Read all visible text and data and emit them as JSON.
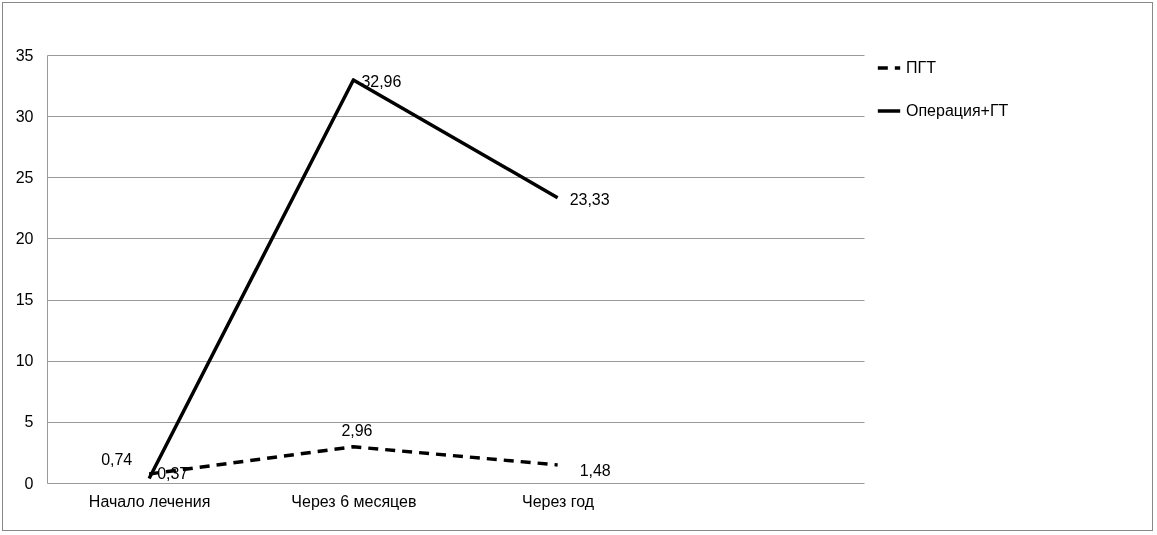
{
  "chart_data": {
    "type": "line",
    "categories": [
      "Начало лечения",
      "Через 6 месяцев",
      "Через год",
      null
    ],
    "ylim": [
      0,
      35
    ],
    "yticks": [
      0,
      5,
      10,
      15,
      20,
      25,
      30,
      35
    ],
    "grid": "y",
    "legend": "right",
    "marker": "none",
    "series": [
      {
        "name": "ПГТ",
        "color": "#000000",
        "line_style": "dashed",
        "values": [
          0.74,
          2.96,
          1.48,
          null
        ],
        "value_labels": [
          "0,74",
          "2,96",
          "1,48",
          null
        ]
      },
      {
        "name": "Операция+ГТ",
        "color": "#000000",
        "line_style": "solid",
        "values": [
          0.37,
          32.96,
          23.33,
          null
        ],
        "value_labels": [
          "0,37",
          "32,96",
          "23,33",
          null
        ]
      }
    ]
  }
}
